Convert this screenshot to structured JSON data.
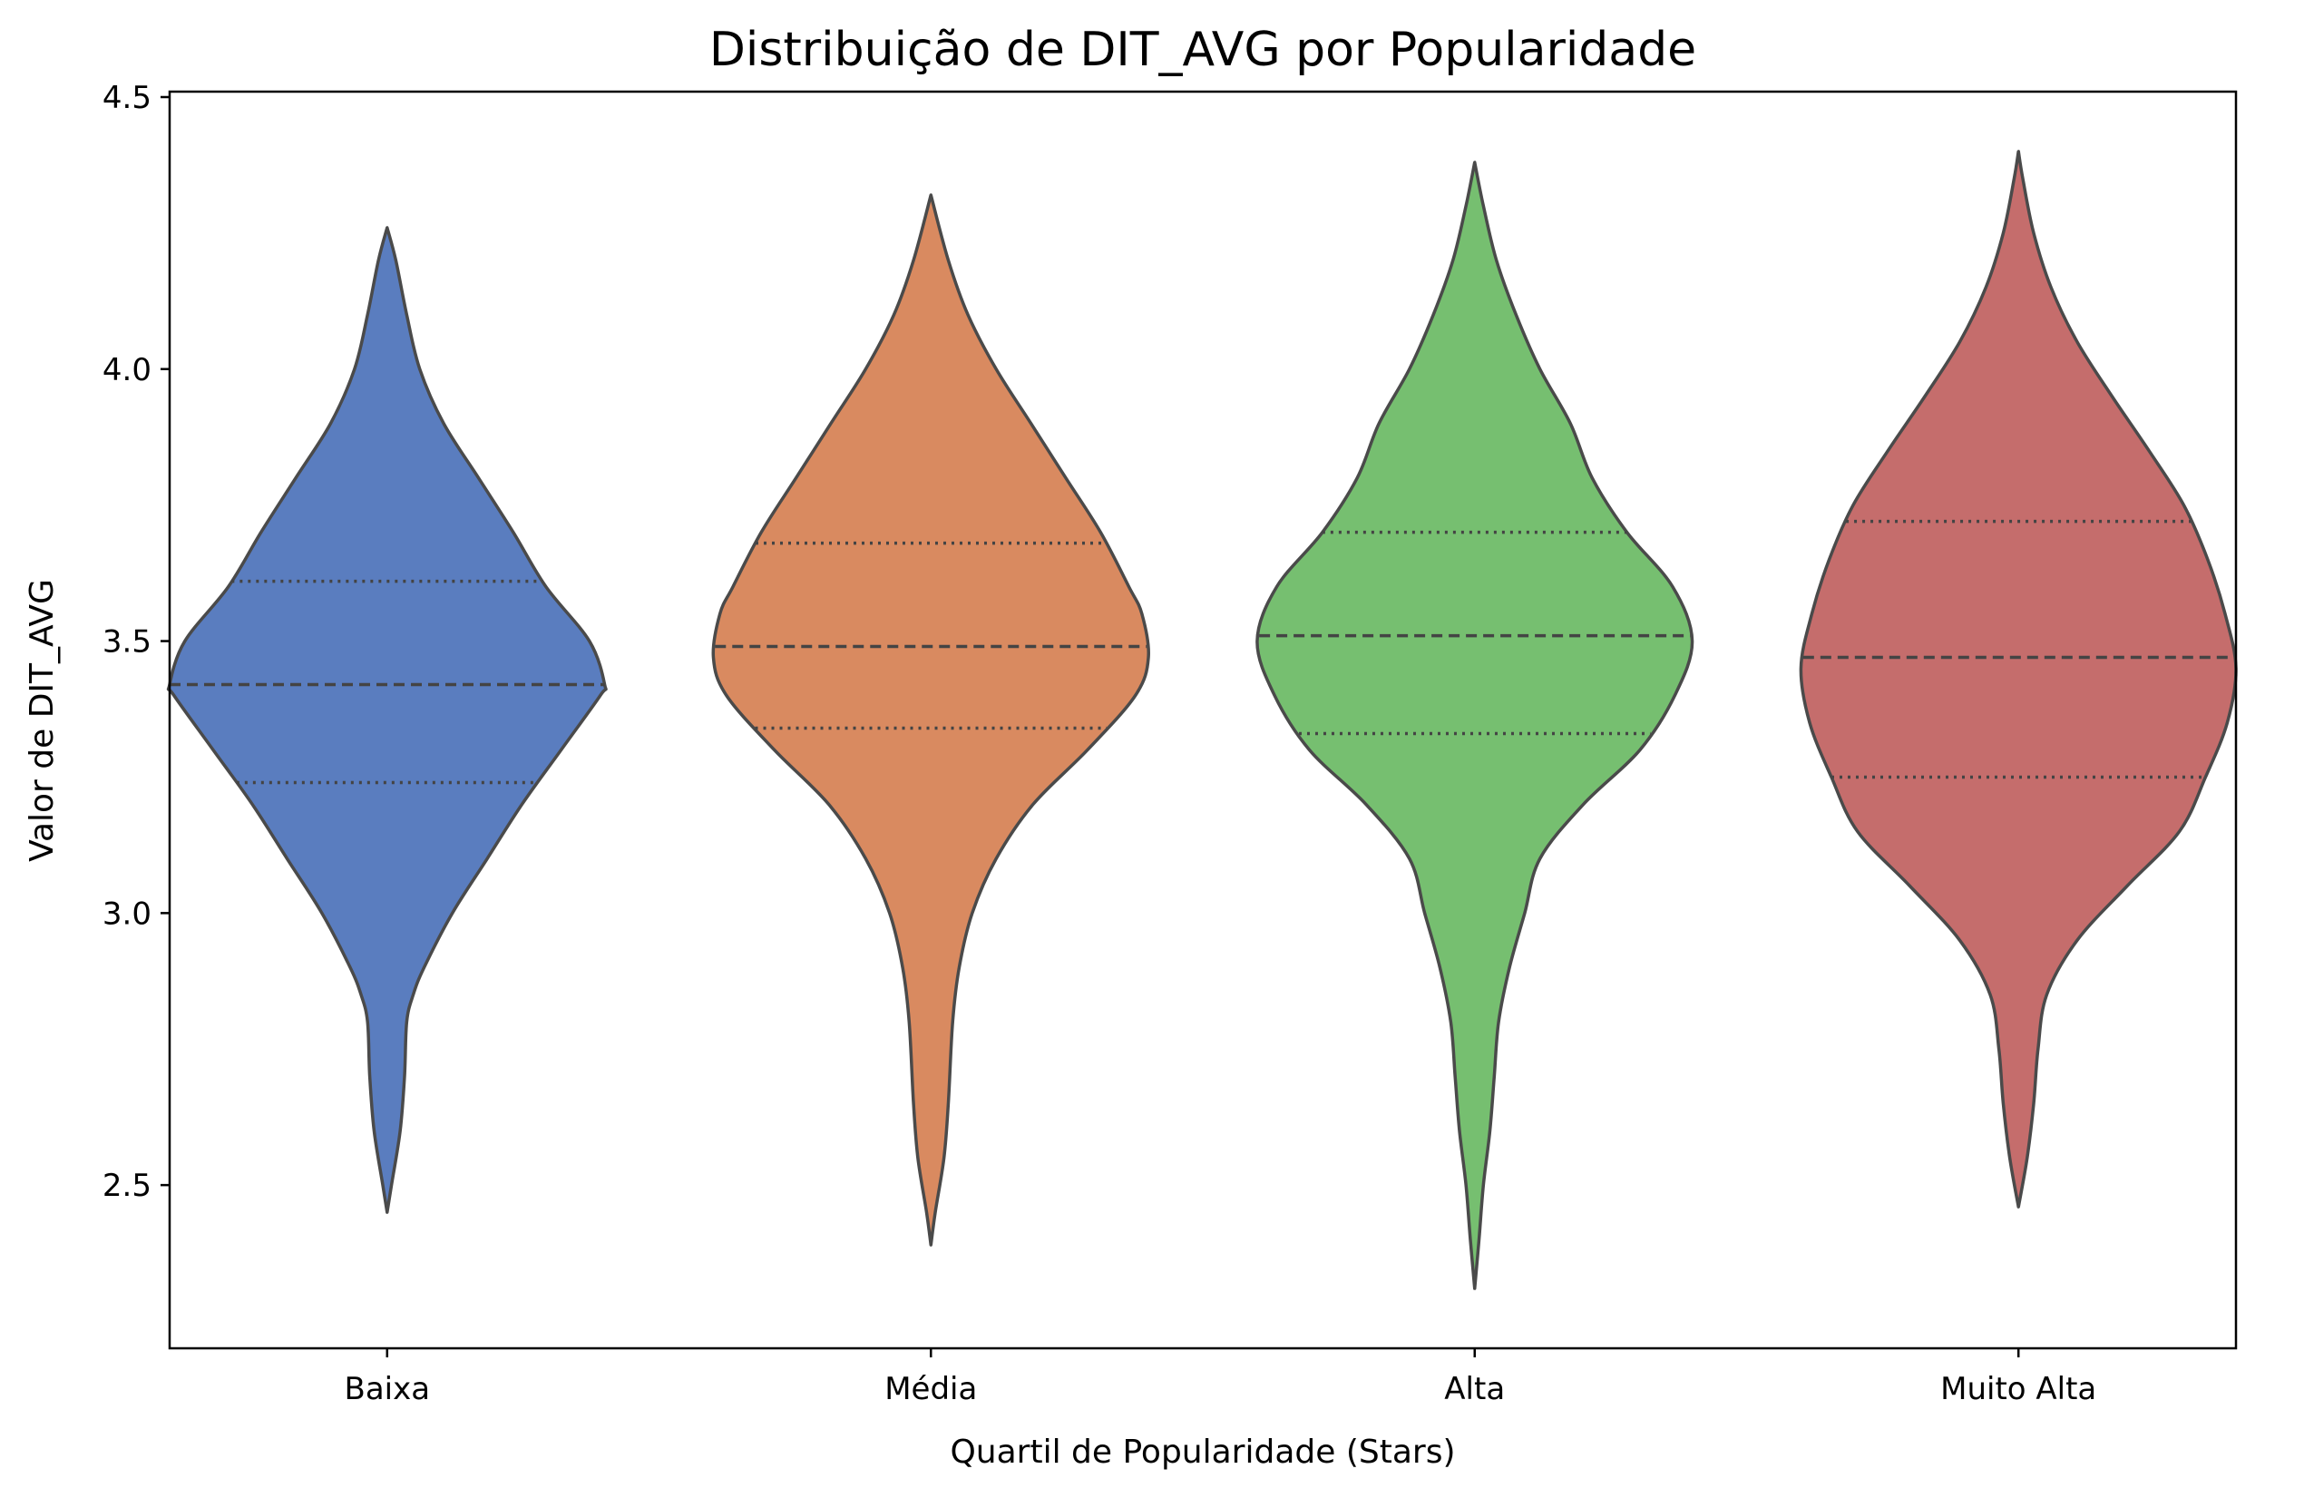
{
  "chart_data": {
    "type": "violin",
    "title": "Distribuição de DIT_AVG por Popularidade",
    "xlabel": "Quartil de Popularidade (Stars)",
    "ylabel": "Valor de DIT_AVG",
    "ylim": [
      2.2,
      4.51
    ],
    "y_ticks": [
      2.5,
      3.0,
      3.5,
      4.0,
      4.5
    ],
    "y_tick_labels": [
      "2.5",
      "3.0",
      "3.5",
      "4.0",
      "4.5"
    ],
    "categories": [
      "Baixa",
      "Média",
      "Alta",
      "Muito Alta"
    ],
    "grid": false,
    "inner": "quartile",
    "series": [
      {
        "category": "Baixa",
        "color": "#5a7dbf",
        "min": 2.45,
        "max": 4.26,
        "q1": 3.24,
        "median": 3.42,
        "q3": 3.61,
        "profile": [
          [
            2.45,
            0.0
          ],
          [
            2.5,
            0.02
          ],
          [
            2.6,
            0.06
          ],
          [
            2.7,
            0.08
          ],
          [
            2.8,
            0.09
          ],
          [
            2.85,
            0.12
          ],
          [
            2.9,
            0.17
          ],
          [
            3.0,
            0.3
          ],
          [
            3.1,
            0.46
          ],
          [
            3.2,
            0.62
          ],
          [
            3.3,
            0.8
          ],
          [
            3.4,
            0.98
          ],
          [
            3.42,
            1.0
          ],
          [
            3.5,
            0.93
          ],
          [
            3.6,
            0.73
          ],
          [
            3.7,
            0.58
          ],
          [
            3.8,
            0.42
          ],
          [
            3.9,
            0.26
          ],
          [
            4.0,
            0.15
          ],
          [
            4.1,
            0.09
          ],
          [
            4.2,
            0.04
          ],
          [
            4.26,
            0.0
          ]
        ]
      },
      {
        "category": "Média",
        "color": "#d98a60",
        "min": 2.39,
        "max": 4.32,
        "q1": 3.34,
        "median": 3.49,
        "q3": 3.68,
        "profile": [
          [
            2.39,
            0.0
          ],
          [
            2.45,
            0.02
          ],
          [
            2.55,
            0.06
          ],
          [
            2.65,
            0.08
          ],
          [
            2.8,
            0.1
          ],
          [
            2.9,
            0.13
          ],
          [
            3.0,
            0.19
          ],
          [
            3.1,
            0.3
          ],
          [
            3.2,
            0.47
          ],
          [
            3.3,
            0.72
          ],
          [
            3.4,
            0.94
          ],
          [
            3.47,
            1.0
          ],
          [
            3.55,
            0.97
          ],
          [
            3.6,
            0.91
          ],
          [
            3.7,
            0.78
          ],
          [
            3.8,
            0.62
          ],
          [
            3.9,
            0.46
          ],
          [
            4.0,
            0.3
          ],
          [
            4.1,
            0.17
          ],
          [
            4.2,
            0.08
          ],
          [
            4.32,
            0.0
          ]
        ]
      },
      {
        "category": "Alta",
        "color": "#76bf70",
        "min": 2.31,
        "max": 4.38,
        "q1": 3.33,
        "median": 3.51,
        "q3": 3.7,
        "profile": [
          [
            2.31,
            0.0
          ],
          [
            2.4,
            0.02
          ],
          [
            2.5,
            0.04
          ],
          [
            2.6,
            0.07
          ],
          [
            2.7,
            0.09
          ],
          [
            2.8,
            0.11
          ],
          [
            2.9,
            0.16
          ],
          [
            3.0,
            0.23
          ],
          [
            3.1,
            0.3
          ],
          [
            3.2,
            0.5
          ],
          [
            3.3,
            0.76
          ],
          [
            3.4,
            0.92
          ],
          [
            3.5,
            1.0
          ],
          [
            3.6,
            0.91
          ],
          [
            3.7,
            0.7
          ],
          [
            3.8,
            0.54
          ],
          [
            3.9,
            0.44
          ],
          [
            4.0,
            0.3
          ],
          [
            4.1,
            0.19
          ],
          [
            4.2,
            0.1
          ],
          [
            4.3,
            0.04
          ],
          [
            4.38,
            0.0
          ]
        ]
      },
      {
        "category": "Muito Alta",
        "color": "#c56d6c",
        "min": 2.46,
        "max": 4.4,
        "q1": 3.25,
        "median": 3.47,
        "q3": 3.72,
        "profile": [
          [
            2.46,
            0.0
          ],
          [
            2.55,
            0.04
          ],
          [
            2.65,
            0.07
          ],
          [
            2.75,
            0.09
          ],
          [
            2.85,
            0.13
          ],
          [
            2.95,
            0.27
          ],
          [
            3.05,
            0.5
          ],
          [
            3.15,
            0.74
          ],
          [
            3.25,
            0.86
          ],
          [
            3.35,
            0.96
          ],
          [
            3.45,
            1.0
          ],
          [
            3.55,
            0.95
          ],
          [
            3.65,
            0.87
          ],
          [
            3.75,
            0.76
          ],
          [
            3.85,
            0.6
          ],
          [
            3.95,
            0.43
          ],
          [
            4.05,
            0.27
          ],
          [
            4.15,
            0.15
          ],
          [
            4.25,
            0.07
          ],
          [
            4.35,
            0.02
          ],
          [
            4.4,
            0.0
          ]
        ]
      }
    ]
  }
}
